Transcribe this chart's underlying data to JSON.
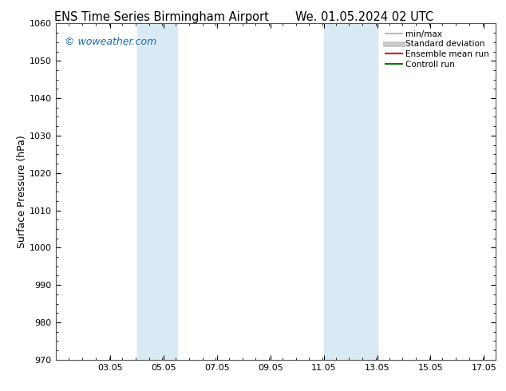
{
  "title_left": "ENS Time Series Birmingham Airport",
  "title_right": "We. 01.05.2024 02 UTC",
  "ylabel": "Surface Pressure (hPa)",
  "ylim": [
    970,
    1060
  ],
  "yticks": [
    970,
    980,
    990,
    1000,
    1010,
    1020,
    1030,
    1040,
    1050,
    1060
  ],
  "xlim_start": 1.0,
  "xlim_end": 17.5,
  "xtick_positions": [
    3.05,
    5.05,
    7.05,
    9.05,
    11.05,
    13.05,
    15.05,
    17.05
  ],
  "xtick_labels": [
    "03.05",
    "05.05",
    "07.05",
    "09.05",
    "11.05",
    "13.05",
    "15.05",
    "17.05"
  ],
  "shaded_bands": [
    {
      "xmin": 4.05,
      "xmax": 5.55,
      "color": "#daeaf5"
    },
    {
      "xmin": 11.05,
      "xmax": 13.05,
      "color": "#daeaf5"
    }
  ],
  "copyright_text": "© woweather.com",
  "copyright_color": "#1a6bb5",
  "legend_entries": [
    {
      "label": "min/max",
      "color": "#aaaaaa",
      "lw": 1.2
    },
    {
      "label": "Standard deviation",
      "color": "#c8c8c8",
      "lw": 5
    },
    {
      "label": "Ensemble mean run",
      "color": "#dd0000",
      "lw": 1.5
    },
    {
      "label": "Controll run",
      "color": "#007700",
      "lw": 1.5
    }
  ],
  "bg_color": "#ffffff",
  "plot_bg_color": "#ffffff",
  "title_fontsize": 10.5,
  "ylabel_fontsize": 9,
  "tick_fontsize": 8,
  "legend_fontsize": 7.5,
  "copyright_fontsize": 9
}
